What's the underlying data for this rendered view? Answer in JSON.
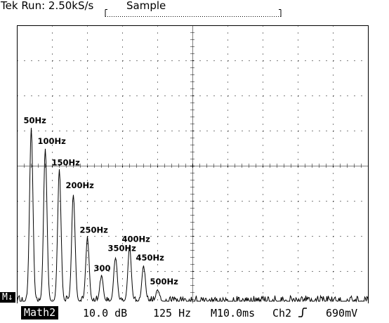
{
  "header": {
    "brand": "Tek",
    "run_status": "Run: 2.50kS/s",
    "acq_mode": "Sample"
  },
  "footer": {
    "math_channel": "Math2",
    "scale": "10.0 dB",
    "freq_per_div": "125 Hz",
    "timebase": "M10.0ms",
    "trigger_source": "Ch2",
    "trigger_level": "690mV",
    "marker": "M↓"
  },
  "chart_data": {
    "type": "line",
    "title": "",
    "xlabel": "",
    "ylabel": "",
    "x_unit": "Hz",
    "xlim": [
      0,
      1250
    ],
    "ylim": [
      0,
      80
    ],
    "grid": true,
    "peaks": [
      {
        "freq": 50,
        "level": 50.8,
        "label": "50Hz"
      },
      {
        "freq": 100,
        "level": 44.9,
        "label": "100Hz"
      },
      {
        "freq": 150,
        "level": 38.8,
        "label": "150Hz"
      },
      {
        "freq": 200,
        "level": 32.3,
        "label": "200Hz"
      },
      {
        "freq": 250,
        "level": 19.6,
        "label": "250Hz"
      },
      {
        "freq": 300,
        "level": 8.7,
        "label": "300"
      },
      {
        "freq": 350,
        "level": 14.4,
        "label": "350Hz"
      },
      {
        "freq": 400,
        "level": 17.0,
        "label": "400Hz"
      },
      {
        "freq": 450,
        "level": 11.7,
        "label": "450Hz"
      },
      {
        "freq": 500,
        "level": 4.9,
        "label": "500Hz"
      }
    ],
    "noise_floor": 1.5
  }
}
